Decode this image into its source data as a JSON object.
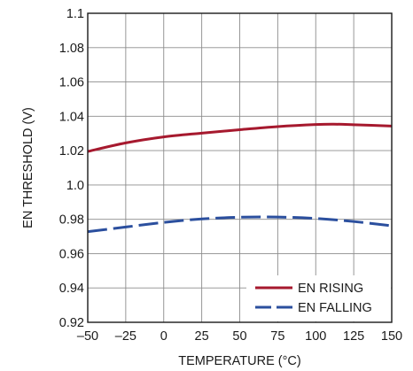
{
  "chart_data": {
    "type": "line",
    "title": "",
    "xlabel": "TEMPERATURE (°C)",
    "ylabel": "EN THRESHOLD (V)",
    "xlim": [
      -50,
      150
    ],
    "ylim": [
      0.92,
      1.1
    ],
    "x_ticks": [
      -50,
      -25,
      0,
      25,
      50,
      75,
      100,
      125,
      150
    ],
    "x_tick_labels": [
      "–50",
      "–25",
      "0",
      "25",
      "50",
      "75",
      "100",
      "125",
      "150"
    ],
    "y_ticks": [
      0.92,
      0.94,
      0.96,
      0.98,
      1.0,
      1.02,
      1.04,
      1.06,
      1.08,
      1.1
    ],
    "y_tick_labels": [
      "0.92",
      "0.94",
      "0.96",
      "0.98",
      "1.0",
      "1.02",
      "1.04",
      "1.06",
      "1.08",
      "1.1"
    ],
    "grid": true,
    "legend_position": "bottom-right",
    "series": [
      {
        "name": "EN RISING",
        "color": "#a6192e",
        "style": "solid",
        "x": [
          -50,
          -25,
          0,
          25,
          50,
          75,
          100,
          112,
          125,
          150
        ],
        "y": [
          1.0195,
          1.0245,
          1.028,
          1.0302,
          1.0322,
          1.034,
          1.0352,
          1.0354,
          1.0351,
          1.0343
        ]
      },
      {
        "name": "EN FALLING",
        "color": "#2b4f9e",
        "style": "dashed",
        "x": [
          -50,
          -25,
          0,
          25,
          50,
          75,
          100,
          125,
          150
        ],
        "y": [
          0.9728,
          0.9755,
          0.9782,
          0.9802,
          0.9812,
          0.9813,
          0.9805,
          0.9787,
          0.9762
        ]
      }
    ]
  }
}
